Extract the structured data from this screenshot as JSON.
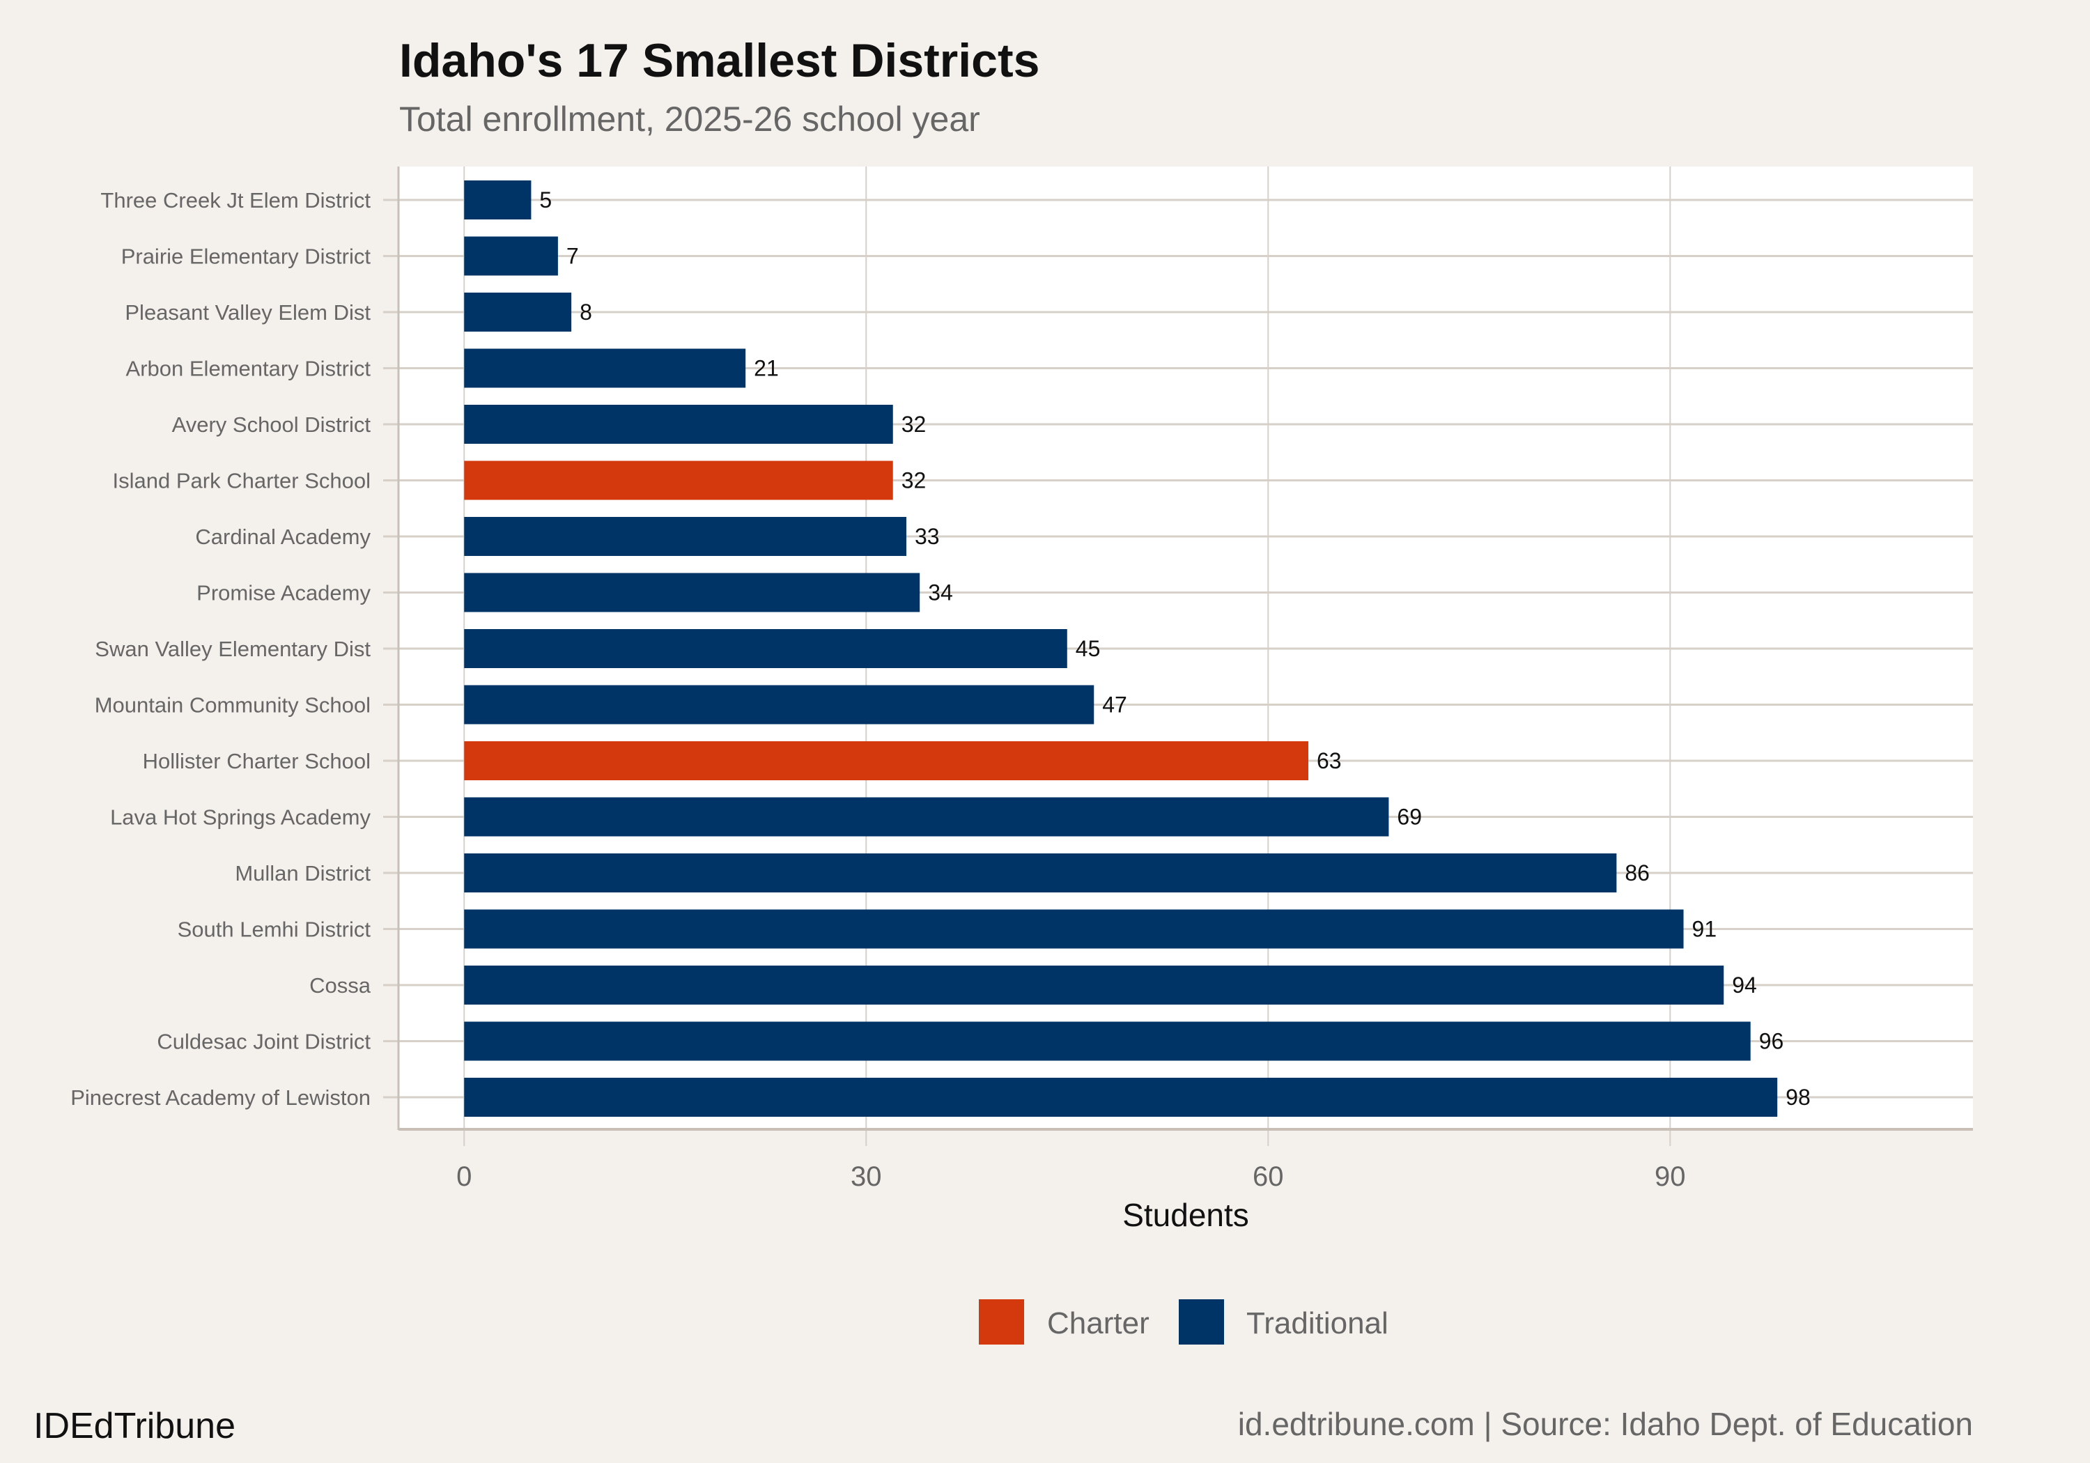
{
  "chart_data": {
    "type": "bar",
    "orientation": "horizontal",
    "title": "Idaho's 17 Smallest Districts",
    "subtitle": "Total enrollment, 2025-26 school year",
    "xlabel": "Students",
    "ylabel": "",
    "xlim": [
      -4.9,
      112.6
    ],
    "xticks": [
      0,
      30,
      60,
      90
    ],
    "grid": true,
    "legend_position": "bottom",
    "legend": [
      {
        "name": "Charter",
        "color": "#d4380d"
      },
      {
        "name": "Traditional",
        "color": "#003366"
      }
    ],
    "categories": [
      "Three Creek Jt Elem District",
      "Prairie Elementary District",
      "Pleasant Valley Elem Dist",
      "Arbon Elementary District",
      "Avery School District",
      "Island Park Charter School",
      "Cardinal Academy",
      "Promise Academy",
      "Swan Valley Elementary Dist",
      "Mountain Community School",
      "Hollister Charter School",
      "Lava Hot Springs Academy",
      "Mullan District",
      "South Lemhi District",
      "Cossa",
      "Culdesac Joint District",
      "Pinecrest Academy of Lewiston"
    ],
    "values": [
      5,
      7,
      8,
      21,
      32,
      32,
      33,
      34,
      45,
      47,
      63,
      69,
      86,
      91,
      94,
      96,
      98
    ],
    "groups": [
      "Traditional",
      "Traditional",
      "Traditional",
      "Traditional",
      "Traditional",
      "Charter",
      "Traditional",
      "Traditional",
      "Traditional",
      "Traditional",
      "Charter",
      "Traditional",
      "Traditional",
      "Traditional",
      "Traditional",
      "Traditional",
      "Traditional"
    ]
  },
  "footer": {
    "brand": "IDEdTribune",
    "source": "id.edtribune.com | Source: Idaho Dept. of Education"
  }
}
